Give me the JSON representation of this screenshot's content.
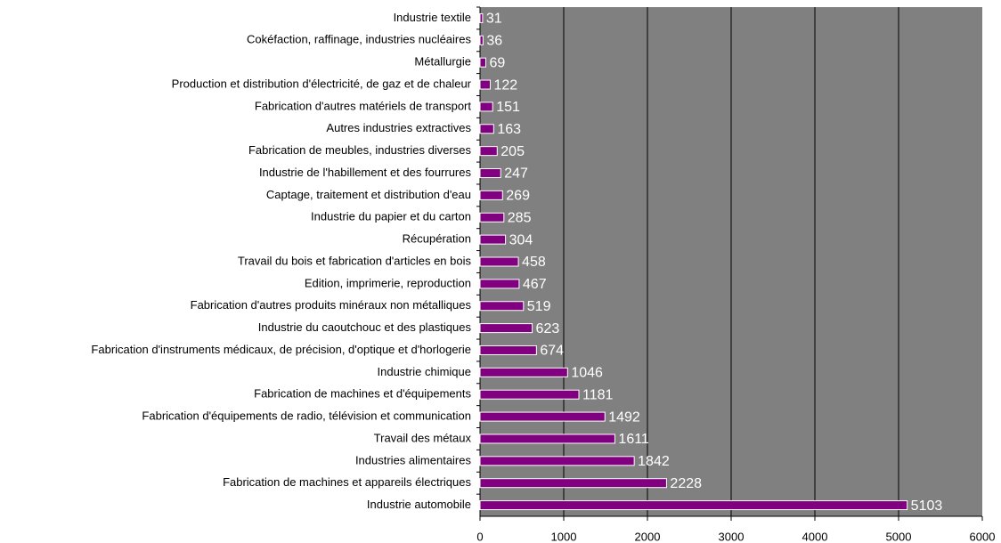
{
  "chart_data": {
    "type": "bar",
    "orientation": "horizontal",
    "categories": [
      "Industrie textile",
      "Cokéfaction, raffinage, industries nucléaires",
      "Métallurgie",
      "Production et distribution d'électricité, de gaz et de chaleur",
      "Fabrication d'autres matériels de transport",
      "Autres industries extractives",
      "Fabrication de meubles, industries diverses",
      "Industrie de l'habillement et des fourrures",
      "Captage, traitement et distribution d'eau",
      "Industrie du papier et du carton",
      "Récupération",
      "Travail du bois et fabrication d'articles en bois",
      "Edition, imprimerie, reproduction",
      "Fabrication d'autres produits minéraux non métalliques",
      "Industrie du caoutchouc et des plastiques",
      "Fabrication d'instruments médicaux, de précision, d'optique et d'horlogerie",
      "Industrie chimique",
      "Fabrication de machines et d'équipements",
      "Fabrication d'équipements de radio, télévision et communication",
      "Travail des métaux",
      "Industries alimentaires",
      "Fabrication de machines et appareils électriques",
      "Industrie automobile"
    ],
    "values": [
      31,
      36,
      69,
      122,
      151,
      163,
      205,
      247,
      269,
      285,
      304,
      458,
      467,
      519,
      623,
      674,
      1046,
      1181,
      1492,
      1611,
      1842,
      2228,
      5103
    ],
    "color": "#800080",
    "plot_background": "#808080",
    "xlim": [
      0,
      6000
    ],
    "xticks": [
      0,
      1000,
      2000,
      3000,
      4000,
      5000,
      6000
    ],
    "grid": true
  }
}
